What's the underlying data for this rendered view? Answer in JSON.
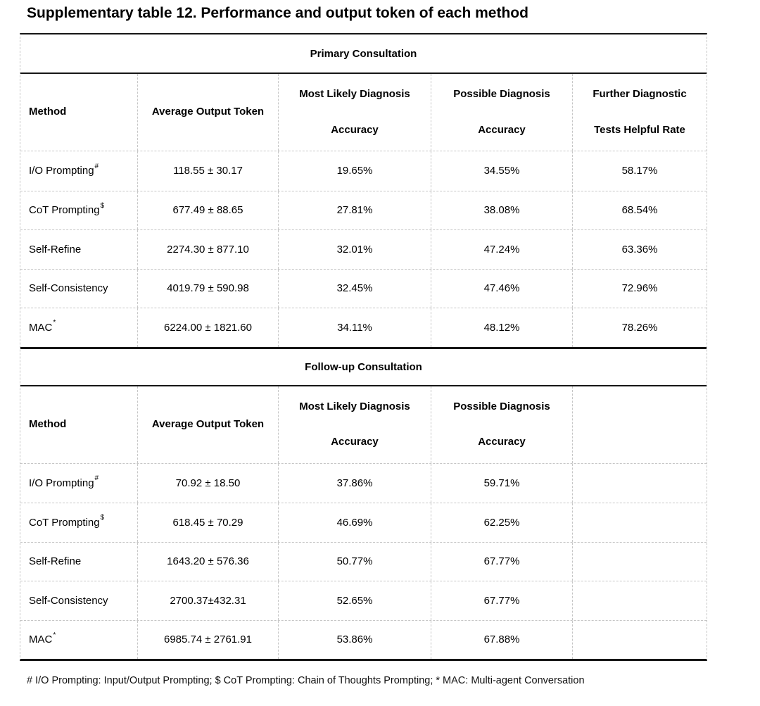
{
  "page": {
    "title": "Supplementary table 12. Performance and output token of each method",
    "footnote": "# I/O Prompting: Input/Output Prompting; $ CoT Prompting: Chain of Thoughts Prompting; * MAC: Multi-agent Conversation"
  },
  "tables": [
    {
      "section_title": "Primary Consultation",
      "columns": [
        {
          "line1": "Method",
          "line2": ""
        },
        {
          "line1": "Average Output Token",
          "line2": ""
        },
        {
          "line1": "Most Likely Diagnosis",
          "line2": "Accuracy"
        },
        {
          "line1": "Possible Diagnosis",
          "line2": "Accuracy"
        },
        {
          "line1": "Further Diagnostic",
          "line2": "Tests Helpful Rate"
        }
      ],
      "rows": [
        {
          "method": "I/O Prompting",
          "sup": "#",
          "values": [
            "118.55 ± 30.17",
            "19.65%",
            "34.55%",
            "58.17%"
          ]
        },
        {
          "method": "CoT Prompting",
          "sup": "$",
          "values": [
            "677.49 ± 88.65",
            "27.81%",
            "38.08%",
            "68.54%"
          ]
        },
        {
          "method": "Self-Refine",
          "sup": "",
          "values": [
            "2274.30 ± 877.10",
            "32.01%",
            "47.24%",
            "63.36%"
          ]
        },
        {
          "method": "Self-Consistency",
          "sup": "",
          "values": [
            "4019.79 ± 590.98",
            "32.45%",
            "47.46%",
            "72.96%"
          ]
        },
        {
          "method": "MAC",
          "sup": "*",
          "values": [
            "6224.00 ± 1821.60",
            "34.11%",
            "48.12%",
            "78.26%"
          ]
        }
      ]
    },
    {
      "section_title": "Follow-up Consultation",
      "columns": [
        {
          "line1": "Method",
          "line2": ""
        },
        {
          "line1": "Average Output Token",
          "line2": ""
        },
        {
          "line1": "Most Likely Diagnosis",
          "line2": "Accuracy"
        },
        {
          "line1": "Possible Diagnosis",
          "line2": "Accuracy"
        },
        {
          "line1": "",
          "line2": ""
        }
      ],
      "rows": [
        {
          "method": "I/O Prompting",
          "sup": "#",
          "values": [
            "70.92 ± 18.50",
            "37.86%",
            "59.71%",
            ""
          ]
        },
        {
          "method": "CoT Prompting",
          "sup": "$",
          "values": [
            "618.45 ± 70.29",
            "46.69%",
            "62.25%",
            ""
          ]
        },
        {
          "method": "Self-Refine",
          "sup": "",
          "values": [
            "1643.20 ± 576.36",
            "50.77%",
            "67.77%",
            ""
          ]
        },
        {
          "method": "Self-Consistency",
          "sup": "",
          "values": [
            "2700.37±432.31",
            "52.65%",
            "67.77%",
            ""
          ]
        },
        {
          "method": "MAC",
          "sup": "*",
          "values": [
            "6985.74 ± 2761.91",
            "53.86%",
            "67.88%",
            ""
          ]
        }
      ]
    }
  ]
}
